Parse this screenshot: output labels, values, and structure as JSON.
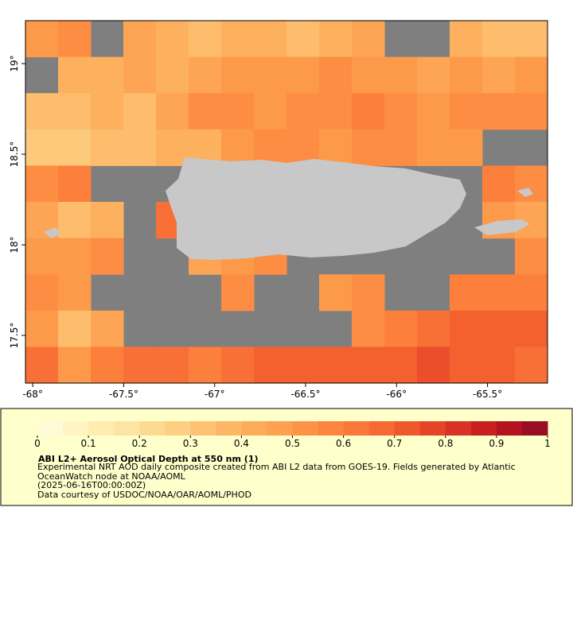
{
  "chart_data": {
    "type": "heatmap",
    "xlim": [
      -68.04,
      -65.17
    ],
    "ylim": [
      17.237,
      19.237
    ],
    "xticks": [
      {
        "value": -68,
        "label": "-68°"
      },
      {
        "value": -67.5,
        "label": "-67.5°"
      },
      {
        "value": -67,
        "label": "-67°"
      },
      {
        "value": -66.5,
        "label": "-66.5°"
      },
      {
        "value": -66,
        "label": "-66°"
      },
      {
        "value": -65.5,
        "label": "-65.5°"
      }
    ],
    "yticks": [
      {
        "value": 17.5,
        "label": "17.5°"
      },
      {
        "value": 18,
        "label": "18°"
      },
      {
        "value": 18.5,
        "label": "18.5°"
      },
      {
        "value": 19,
        "label": "19°"
      }
    ],
    "z": [
      [
        0.5,
        0.55,
        null,
        0.45,
        0.4,
        0.35,
        0.4,
        0.4,
        0.35,
        0.4,
        0.45,
        null,
        null,
        0.4,
        0.35,
        0.35
      ],
      [
        null,
        0.4,
        0.4,
        0.45,
        0.4,
        0.45,
        0.5,
        0.5,
        0.5,
        0.55,
        0.5,
        0.5,
        0.45,
        0.5,
        0.45,
        0.5
      ],
      [
        0.35,
        0.35,
        0.4,
        0.35,
        0.45,
        0.55,
        0.55,
        0.5,
        0.55,
        0.55,
        0.6,
        0.55,
        0.5,
        0.55,
        0.55,
        0.55
      ],
      [
        0.3,
        0.3,
        0.35,
        0.35,
        0.4,
        0.4,
        0.5,
        0.55,
        0.55,
        0.5,
        0.55,
        0.55,
        0.5,
        0.5,
        null,
        null
      ],
      [
        0.55,
        0.6,
        null,
        null,
        null,
        null,
        null,
        null,
        null,
        null,
        null,
        null,
        null,
        null,
        0.6,
        0.55
      ],
      [
        0.45,
        0.35,
        0.4,
        null,
        0.65,
        null,
        null,
        null,
        null,
        null,
        null,
        null,
        null,
        null,
        0.5,
        0.45
      ],
      [
        0.5,
        0.5,
        0.55,
        null,
        null,
        0.45,
        0.5,
        0.55,
        null,
        null,
        null,
        null,
        null,
        null,
        null,
        0.55
      ],
      [
        0.55,
        0.5,
        null,
        null,
        null,
        null,
        0.55,
        null,
        null,
        0.5,
        0.55,
        null,
        null,
        0.6,
        0.6,
        0.6
      ],
      [
        0.5,
        0.35,
        0.45,
        null,
        null,
        null,
        null,
        null,
        null,
        null,
        0.55,
        0.6,
        0.65,
        0.7,
        0.7,
        0.7
      ],
      [
        0.65,
        0.5,
        0.6,
        0.65,
        0.65,
        0.6,
        0.65,
        0.7,
        0.7,
        0.7,
        0.7,
        0.7,
        0.75,
        0.7,
        0.7,
        0.65
      ]
    ],
    "colorscale": [
      "#ffffe0",
      "#fff0b8",
      "#fde09a",
      "#fdc97a",
      "#fdb05e",
      "#fd9a4a",
      "#fc7f3c",
      "#f4612f",
      "#e03a27",
      "#c0161f",
      "#8b0a26"
    ],
    "nodata_color": "#7f7f7f",
    "land_color": "#c8c8c8",
    "colorbar": {
      "range": [
        0,
        1
      ],
      "ticks": [
        0,
        0.1,
        0.2,
        0.3,
        0.4,
        0.5,
        0.6,
        0.7,
        0.8,
        0.9,
        1
      ]
    },
    "title": "ABI L2+ Aerosol Optical Depth at 550 nm (1)",
    "description": "Experimental NRT AOD daily composite created from ABI L2 data from GOES-19. Fields generated by Atlantic OceanWatch node at NOAA/AOML",
    "time": "(2025-06-16T00:00:00Z)",
    "credit": "Data courtesy of USDOC/NOAA/OAR/AOML/PHOD"
  }
}
